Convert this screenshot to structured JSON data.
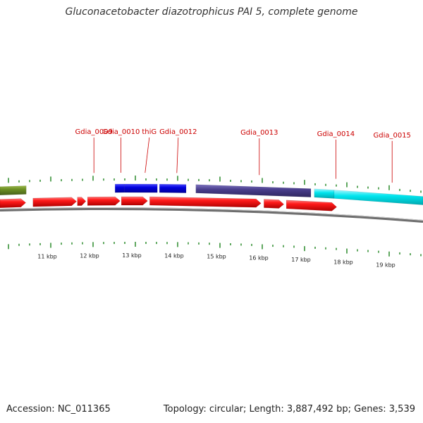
{
  "title": "Gluconacetobacter diazotrophicus PAI 5, complete genome",
  "footer": {
    "accession": "Accession: NC_011365",
    "summary": "Topology: circular; Length: 3,887,492 bp; Genes: 3,539"
  },
  "map": {
    "visible_range_bp": [
      9800,
      19800
    ],
    "colors": {
      "forward_cds": "#ff0000",
      "label": "#cc0000",
      "tick": "#2a8a2a",
      "backbone": "#888888",
      "olive": "#6b8e23",
      "blue": "#0000dd",
      "slate": "#483d8b",
      "cyan": "#00e5ee"
    },
    "kbp_labels": [
      "11 kbp",
      "12 kbp",
      "13 kbp",
      "14 kbp",
      "15 kbp",
      "16 kbp",
      "17 kbp",
      "18 kbp",
      "19 kbp"
    ],
    "gene_labels": [
      {
        "name": "Gdia_0009",
        "pos_bp": 12020
      },
      {
        "name": "Gdia_0010",
        "pos_bp": 12660
      },
      {
        "name": "thiG",
        "pos_bp": 13230
      },
      {
        "name": "Gdia_0012",
        "pos_bp": 13980
      },
      {
        "name": "Gdia_0013",
        "pos_bp": 15930
      },
      {
        "name": "Gdia_0014",
        "pos_bp": 17740
      },
      {
        "name": "Gdia_0015",
        "pos_bp": 19070
      }
    ],
    "outer_features": [
      {
        "from_bp": 9800,
        "to_bp": 10420,
        "color": "olive"
      },
      {
        "from_bp": 12520,
        "to_bp": 12740,
        "color": "blue"
      },
      {
        "from_bp": 12740,
        "to_bp": 13520,
        "color": "blue"
      },
      {
        "from_bp": 13570,
        "to_bp": 14200,
        "color": "blue"
      },
      {
        "from_bp": 14430,
        "to_bp": 17150,
        "color": "slate"
      },
      {
        "from_bp": 17230,
        "to_bp": 17700,
        "color": "cyan"
      },
      {
        "from_bp": 17700,
        "to_bp": 19800,
        "color": "cyan"
      }
    ],
    "cds_arrows": [
      {
        "from_bp": 9800,
        "to_bp": 10410
      },
      {
        "from_bp": 10580,
        "to_bp": 11610
      },
      {
        "from_bp": 11630,
        "to_bp": 11830
      },
      {
        "from_bp": 11870,
        "to_bp": 12640
      },
      {
        "from_bp": 12670,
        "to_bp": 13290
      },
      {
        "from_bp": 13340,
        "to_bp": 15970
      },
      {
        "from_bp": 16040,
        "to_bp": 16510
      },
      {
        "from_bp": 16570,
        "to_bp": 17760
      }
    ]
  }
}
